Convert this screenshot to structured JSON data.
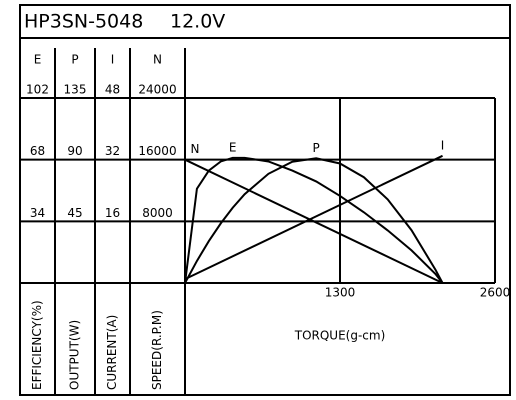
{
  "chart_data": {
    "type": "line",
    "title": "HP3SN-5048",
    "subtitle": "12.0V",
    "xlabel": "TORQUE(g-cm)",
    "xlim": [
      0,
      2600
    ],
    "xticks": [
      1300,
      2600
    ],
    "grid": true,
    "color": "#000000",
    "axes": [
      {
        "header": "E",
        "label": "EFFICIENCY(%)",
        "lim": [
          0,
          102
        ],
        "ticks": [
          34,
          68,
          102
        ]
      },
      {
        "header": "P",
        "label": "OUTPUT(W)",
        "lim": [
          0,
          135
        ],
        "ticks": [
          45,
          90,
          135
        ]
      },
      {
        "header": "I",
        "label": "CURRENT(A)",
        "lim": [
          0,
          48
        ],
        "ticks": [
          16,
          32,
          48
        ]
      },
      {
        "header": "N",
        "label": "SPEED(R.P.M)",
        "lim": [
          0,
          24000
        ],
        "ticks": [
          8000,
          16000,
          24000
        ]
      }
    ],
    "series": [
      {
        "name": "N",
        "axis": 3,
        "x": [
          0,
          2160
        ],
        "values": [
          16000,
          0
        ]
      },
      {
        "name": "E",
        "axis": 0,
        "x": [
          0,
          100,
          200,
          300,
          400,
          500,
          700,
          900,
          1100,
          1300,
          1500,
          1700,
          1900,
          2100,
          2160
        ],
        "values": [
          0,
          52,
          62,
          67,
          69,
          69,
          67,
          62,
          56,
          48,
          39,
          29,
          18,
          5,
          0
        ]
      },
      {
        "name": "P",
        "axis": 1,
        "x": [
          0,
          100,
          200,
          300,
          400,
          500,
          700,
          900,
          1100,
          1300,
          1500,
          1700,
          1900,
          2100,
          2160
        ],
        "values": [
          0,
          16.1,
          30.6,
          43.5,
          54.9,
          64.8,
          79.7,
          88.5,
          91.0,
          87.2,
          77.2,
          61.0,
          38.5,
          9.8,
          0
        ]
      },
      {
        "name": "I",
        "axis": 2,
        "x": [
          0,
          2160
        ],
        "values": [
          1,
          33
        ]
      }
    ]
  }
}
